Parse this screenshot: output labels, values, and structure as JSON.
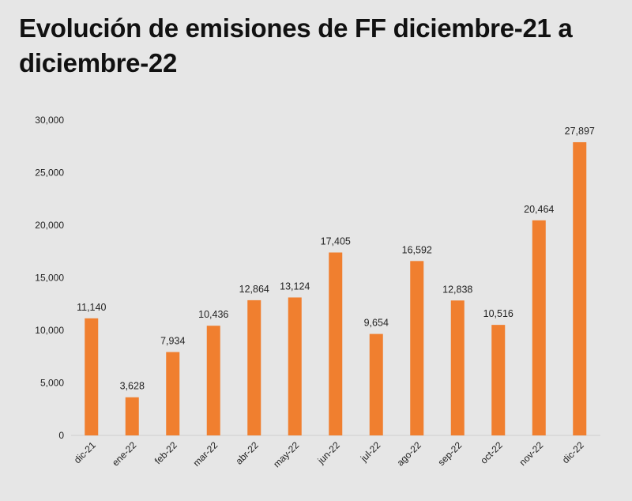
{
  "chart_data": {
    "type": "bar",
    "title": "Evolución de emisiones de FF diciembre-21 a diciembre-22",
    "categories": [
      "dic-21",
      "ene-22",
      "feb-22",
      "mar-22",
      "abr-22",
      "may-22",
      "jun-22",
      "jul-22",
      "ago-22",
      "sep-22",
      "oct-22",
      "nov-22",
      "dic-22"
    ],
    "values": [
      11140,
      3628,
      7934,
      10436,
      12864,
      13124,
      17405,
      9654,
      16592,
      12838,
      10516,
      20464,
      27897
    ],
    "value_labels": [
      "11,140",
      "3,628",
      "7,934",
      "10,436",
      "12,864",
      "13,124",
      "17,405",
      "9,654",
      "16,592",
      "12,838",
      "10,516",
      "20,464",
      "27,897"
    ],
    "yticks": [
      "0",
      "5,000",
      "10,000",
      "15,000",
      "20,000",
      "25,000",
      "30,000"
    ],
    "ylim": [
      0,
      30000
    ],
    "xlabel": "",
    "ylabel": "",
    "grid": false,
    "legend": "none",
    "bar_color": "#f07f2f",
    "background": "#e6e6e6"
  }
}
